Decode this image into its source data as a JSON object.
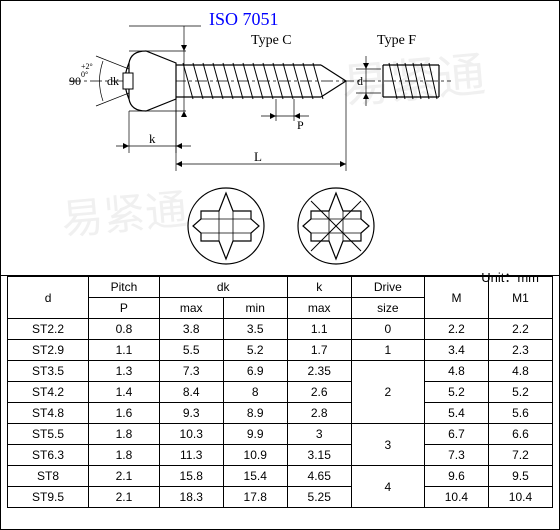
{
  "title": "ISO 7051",
  "type_c_label": "Type C",
  "type_f_label": "Type F",
  "dim_labels": {
    "angle": "90",
    "angle_tol": "+2°/0°",
    "dk": "dk",
    "k": "k",
    "L": "L",
    "P": "P",
    "d": "d"
  },
  "unit_text": "Unit：mm",
  "table": {
    "headers": {
      "d": "d",
      "pitch": "Pitch",
      "pitch_sub": "P",
      "dk": "dk",
      "dk_max": "max",
      "dk_min": "min",
      "k": "k",
      "k_max": "max",
      "drive": "Drive",
      "drive_sub": "size",
      "M": "M",
      "M1": "M1"
    },
    "rows": [
      {
        "d": "ST2.2",
        "p": "0.8",
        "dkmax": "3.8",
        "dkmin": "3.5",
        "kmax": "1.1",
        "drive": "0",
        "m": "2.2",
        "m1": "2.2"
      },
      {
        "d": "ST2.9",
        "p": "1.1",
        "dkmax": "5.5",
        "dkmin": "5.2",
        "kmax": "1.7",
        "drive": "1",
        "m": "3.4",
        "m1": "2.3"
      },
      {
        "d": "ST3.5",
        "p": "1.3",
        "dkmax": "7.3",
        "dkmin": "6.9",
        "kmax": "2.35",
        "drive": "2",
        "m": "4.8",
        "m1": "4.8"
      },
      {
        "d": "ST4.2",
        "p": "1.4",
        "dkmax": "8.4",
        "dkmin": "8",
        "kmax": "2.6",
        "drive": "",
        "m": "5.2",
        "m1": "5.2"
      },
      {
        "d": "ST4.8",
        "p": "1.6",
        "dkmax": "9.3",
        "dkmin": "8.9",
        "kmax": "2.8",
        "drive": "",
        "m": "5.4",
        "m1": "5.6"
      },
      {
        "d": "ST5.5",
        "p": "1.8",
        "dkmax": "10.3",
        "dkmin": "9.9",
        "kmax": "3",
        "drive": "3",
        "m": "6.7",
        "m1": "6.6"
      },
      {
        "d": "ST6.3",
        "p": "1.8",
        "dkmax": "11.3",
        "dkmin": "10.9",
        "kmax": "3.15",
        "drive": "",
        "m": "7.3",
        "m1": "7.2"
      },
      {
        "d": "ST8",
        "p": "2.1",
        "dkmax": "15.8",
        "dkmin": "15.4",
        "kmax": "4.65",
        "drive": "4",
        "m": "9.6",
        "m1": "9.5"
      },
      {
        "d": "ST9.5",
        "p": "2.1",
        "dkmax": "18.3",
        "dkmin": "17.8",
        "kmax": "5.25",
        "drive": "",
        "m": "10.4",
        "m1": "10.4"
      }
    ],
    "drive_spans": [
      1,
      1,
      3,
      2,
      2
    ]
  },
  "colors": {
    "title": "#0000ff",
    "line": "#000000",
    "bg": "#ffffff",
    "watermark": "#f0f0f0"
  }
}
